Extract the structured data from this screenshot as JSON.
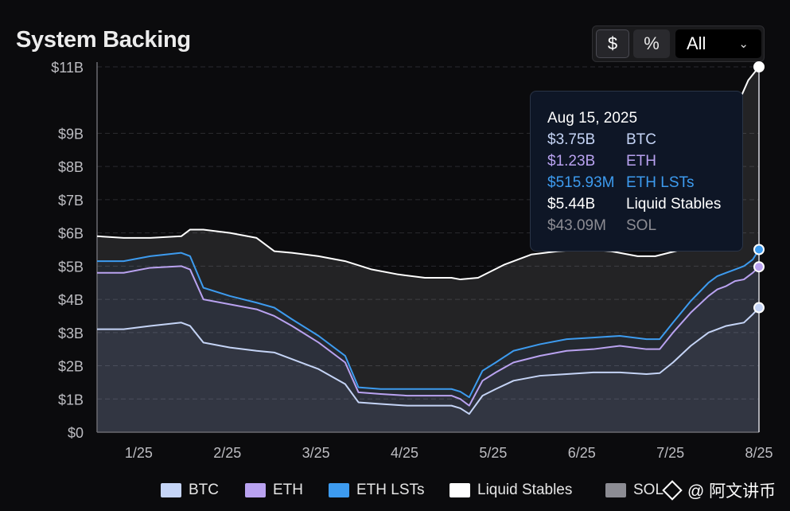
{
  "header": {
    "title": "System Backing"
  },
  "controls": {
    "currency_label": "$",
    "percent_label": "%",
    "range_label": "All"
  },
  "tooltip": {
    "date": "Aug 15, 2025",
    "rows": [
      {
        "value": "$3.75B",
        "label": "BTC",
        "color": "#c5d4f6"
      },
      {
        "value": "$1.23B",
        "label": "ETH",
        "color": "#b9a2f0"
      },
      {
        "value": "$515.93M",
        "label": "ETH LSTs",
        "color": "#3d9bef"
      },
      {
        "value": "$5.44B",
        "label": "Liquid Stables",
        "color": "#ffffff"
      },
      {
        "value": "$43.09M",
        "label": "SOL",
        "color": "#8c8c93"
      }
    ]
  },
  "watermark": "@ 阿文讲币",
  "chart_data": {
    "type": "area",
    "title": "System Backing",
    "xlabel": "",
    "ylabel": "",
    "x_ticks": [
      "1/25",
      "2/25",
      "3/25",
      "4/25",
      "5/25",
      "6/25",
      "7/25",
      "8/25"
    ],
    "x_range": [
      0,
      7.47
    ],
    "y_ticks": [
      "$0",
      "$1B",
      "$2B",
      "$3B",
      "$4B",
      "$5B",
      "$6B",
      "$7B",
      "$8B",
      "$9B",
      "$11B"
    ],
    "ylim": [
      0,
      11
    ],
    "grid": true,
    "legend_position": "bottom",
    "series": [
      {
        "name": "BTC",
        "color": "#c5d4f6",
        "x": [
          0,
          0.3,
          0.6,
          0.95,
          1.05,
          1.2,
          1.5,
          1.8,
          2.0,
          2.2,
          2.5,
          2.8,
          2.95,
          3.2,
          3.5,
          3.8,
          4.0,
          4.1,
          4.2,
          4.35,
          4.5,
          4.7,
          5.0,
          5.3,
          5.6,
          5.9,
          6.2,
          6.35,
          6.5,
          6.7,
          6.9,
          7.0,
          7.1,
          7.2,
          7.3,
          7.4,
          7.47
        ],
        "y": [
          3.1,
          3.1,
          3.2,
          3.3,
          3.2,
          2.7,
          2.55,
          2.45,
          2.4,
          2.2,
          1.9,
          1.45,
          0.9,
          0.85,
          0.8,
          0.8,
          0.8,
          0.72,
          0.55,
          1.1,
          1.3,
          1.55,
          1.7,
          1.75,
          1.8,
          1.8,
          1.75,
          1.78,
          2.1,
          2.6,
          3.0,
          3.1,
          3.2,
          3.25,
          3.3,
          3.55,
          3.75
        ]
      },
      {
        "name": "ETH",
        "color": "#b9a2f0",
        "x": [
          0,
          0.3,
          0.6,
          0.95,
          1.05,
          1.2,
          1.5,
          1.8,
          2.0,
          2.2,
          2.5,
          2.8,
          2.95,
          3.2,
          3.5,
          3.8,
          4.0,
          4.1,
          4.2,
          4.35,
          4.5,
          4.7,
          5.0,
          5.3,
          5.6,
          5.9,
          6.2,
          6.35,
          6.5,
          6.7,
          6.9,
          7.0,
          7.1,
          7.2,
          7.3,
          7.4,
          7.47
        ],
        "y": [
          4.8,
          4.8,
          4.95,
          5.0,
          4.9,
          4.0,
          3.85,
          3.7,
          3.5,
          3.2,
          2.7,
          2.1,
          1.2,
          1.15,
          1.1,
          1.1,
          1.1,
          1.0,
          0.8,
          1.55,
          1.8,
          2.1,
          2.3,
          2.45,
          2.5,
          2.6,
          2.5,
          2.5,
          3.0,
          3.6,
          4.1,
          4.3,
          4.4,
          4.55,
          4.6,
          4.8,
          4.98
        ]
      },
      {
        "name": "ETH LSTs",
        "color": "#3d9bef",
        "x": [
          0,
          0.3,
          0.6,
          0.95,
          1.05,
          1.2,
          1.5,
          1.8,
          2.0,
          2.2,
          2.5,
          2.8,
          2.95,
          3.2,
          3.5,
          3.8,
          4.0,
          4.1,
          4.2,
          4.35,
          4.5,
          4.7,
          5.0,
          5.3,
          5.6,
          5.9,
          6.2,
          6.35,
          6.5,
          6.7,
          6.9,
          7.0,
          7.1,
          7.2,
          7.3,
          7.4,
          7.47
        ],
        "y": [
          5.15,
          5.15,
          5.3,
          5.4,
          5.3,
          4.35,
          4.1,
          3.9,
          3.75,
          3.4,
          2.9,
          2.3,
          1.35,
          1.3,
          1.3,
          1.3,
          1.3,
          1.22,
          1.05,
          1.85,
          2.1,
          2.45,
          2.65,
          2.8,
          2.85,
          2.9,
          2.8,
          2.8,
          3.3,
          3.95,
          4.5,
          4.7,
          4.8,
          4.9,
          5.0,
          5.2,
          5.5
        ]
      },
      {
        "name": "Liquid Stables",
        "color": "#ffffff",
        "x": [
          0,
          0.3,
          0.6,
          0.95,
          1.05,
          1.2,
          1.5,
          1.8,
          2.0,
          2.2,
          2.5,
          2.8,
          3.1,
          3.4,
          3.7,
          4.0,
          4.1,
          4.3,
          4.6,
          4.9,
          5.2,
          5.5,
          5.8,
          6.1,
          6.3,
          6.6,
          6.9,
          7.1,
          7.25,
          7.35,
          7.47
        ],
        "y": [
          5.9,
          5.85,
          5.85,
          5.9,
          6.1,
          6.1,
          6.0,
          5.85,
          5.45,
          5.4,
          5.3,
          5.15,
          4.9,
          4.75,
          4.65,
          4.65,
          4.6,
          4.65,
          5.05,
          5.35,
          5.45,
          5.5,
          5.45,
          5.3,
          5.3,
          5.5,
          7.0,
          9.0,
          10.0,
          10.6,
          11.0
        ]
      },
      {
        "name": "SOL",
        "color": "#8c8c93",
        "x": [],
        "y": []
      }
    ]
  }
}
